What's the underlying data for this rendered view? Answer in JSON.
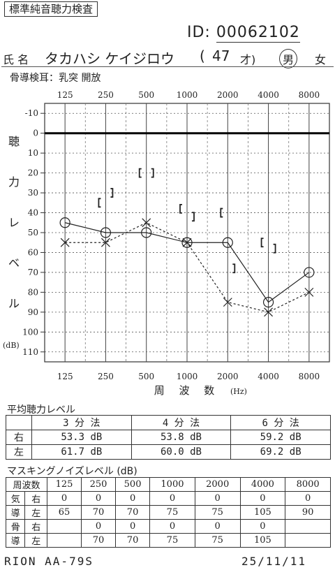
{
  "header": {
    "title": "標準純音聴力検査",
    "id_label": "ID:",
    "id_value": "00062102",
    "name_label": "氏 名",
    "name_value": "タカハシ ケイジロウ",
    "age_open": "(",
    "age_value": "47",
    "age_unit": "才)",
    "sex_male": "男",
    "sex_female": "女",
    "bone_note": "骨導検耳：乳突 開放"
  },
  "chart_data": {
    "type": "line",
    "x": [
      125,
      250,
      500,
      1000,
      2000,
      4000,
      8000
    ],
    "tick_labels_top": [
      "125",
      "250",
      "500",
      "1000",
      "2000",
      "4000",
      "8000"
    ],
    "tick_labels_bottom": [
      "125",
      "250",
      "500",
      "1000",
      "2000",
      "4000",
      "8000"
    ],
    "xlabel": "周 波 数",
    "xunit": "(Hz)",
    "ylabel_chars": [
      "聴",
      "力",
      "レ",
      "ベ",
      "ル"
    ],
    "yunit": "(dB)",
    "y_ticks": [
      -10,
      0,
      10,
      20,
      30,
      40,
      50,
      60,
      70,
      80,
      90,
      100,
      110
    ],
    "ylim": [
      -15,
      115
    ],
    "y_inverted": true,
    "grid": true,
    "series": [
      {
        "ear": "right_air",
        "marker": "circle",
        "line": "solid",
        "color": "#222222",
        "values": [
          45,
          50,
          50,
          55,
          55,
          85,
          70
        ]
      },
      {
        "ear": "left_air",
        "marker": "cross",
        "line": "dashed",
        "color": "#222222",
        "values": [
          55,
          55,
          45,
          55,
          85,
          90,
          80
        ]
      },
      {
        "ear": "right_bone",
        "marker": "[",
        "color": "#222222",
        "points": [
          [
            250,
            35
          ],
          [
            500,
            20
          ],
          [
            1000,
            38
          ],
          [
            2000,
            40
          ],
          [
            4000,
            55
          ]
        ]
      },
      {
        "ear": "left_bone",
        "marker": "]",
        "color": "#222222",
        "points": [
          [
            250,
            30
          ],
          [
            500,
            20
          ],
          [
            1000,
            42
          ],
          [
            2000,
            68
          ],
          [
            4000,
            58
          ]
        ]
      }
    ]
  },
  "average": {
    "title": "平均聴力レベル",
    "headers": [
      "",
      "3 分 法",
      "4 分 法",
      "6 分 法"
    ],
    "rows": [
      [
        "右",
        "53.3 dB",
        "53.8 dB",
        "59.2 dB"
      ],
      [
        "左",
        "61.7 dB",
        "60.0 dB",
        "69.2 dB"
      ]
    ]
  },
  "masking": {
    "title": "マスキングノイズレベル (dB)",
    "freq_header": "周波数",
    "freqs": [
      "125",
      "250",
      "500",
      "1000",
      "2000",
      "4000",
      "8000"
    ],
    "rows": [
      {
        "group": "気",
        "side": "右",
        "values": [
          "0",
          "0",
          "0",
          "0",
          "0",
          "0",
          "0"
        ]
      },
      {
        "group": "導",
        "side": "左",
        "values": [
          "65",
          "70",
          "70",
          "75",
          "75",
          "105",
          "90"
        ]
      },
      {
        "group": "骨",
        "side": "右",
        "values": [
          "",
          "0",
          "0",
          "0",
          "0",
          "0",
          ""
        ]
      },
      {
        "group": "導",
        "side": "左",
        "values": [
          "",
          "70",
          "70",
          "75",
          "75",
          "105",
          ""
        ]
      }
    ]
  },
  "footer": {
    "device": "RION AA-79S",
    "date": "25/11/11"
  }
}
